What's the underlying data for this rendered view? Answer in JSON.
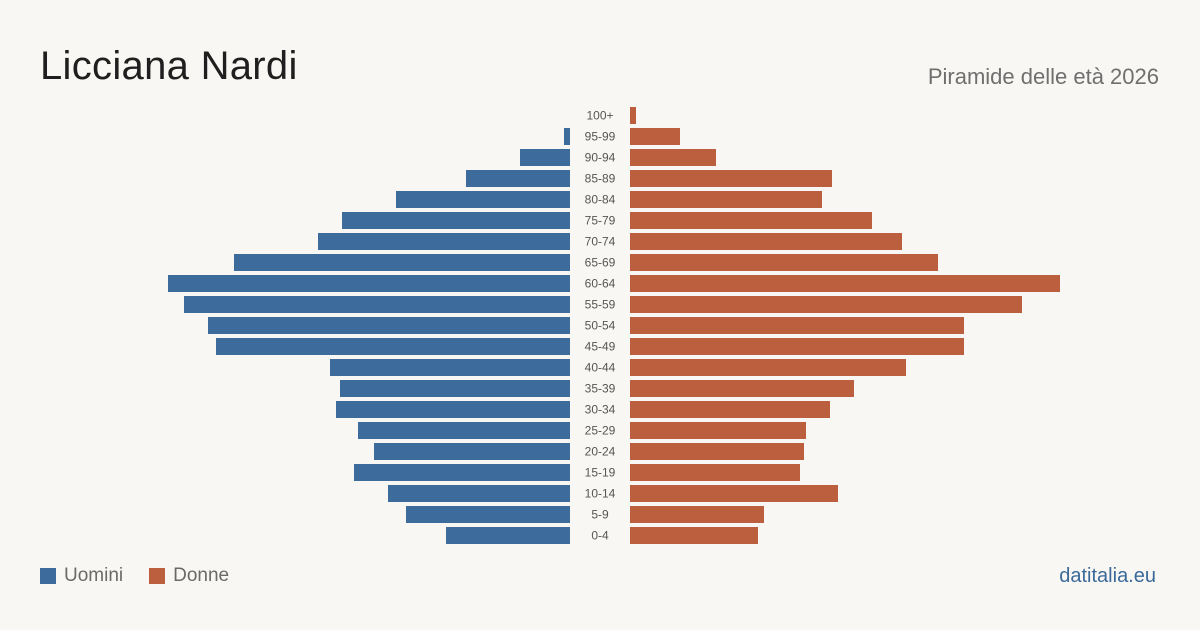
{
  "title": "Licciana Nardi",
  "subtitle": "Piramide delle età 2026",
  "site": "datitalia.eu",
  "colors": {
    "male": "#3d6b9b",
    "female": "#bc5f3e",
    "background": "#f9f7f3"
  },
  "legend": [
    {
      "label": "Uomini",
      "color": "#3d6b9b"
    },
    {
      "label": "Donne",
      "color": "#bc5f3e"
    }
  ],
  "chart_data": {
    "type": "bar",
    "orientation": "horizontal-pyramid",
    "categories": [
      "100+",
      "95-99",
      "90-94",
      "85-89",
      "80-84",
      "75-79",
      "70-74",
      "65-69",
      "60-64",
      "55-59",
      "50-54",
      "45-49",
      "40-44",
      "35-39",
      "30-34",
      "25-29",
      "20-24",
      "15-19",
      "10-14",
      "5-9",
      "0-4"
    ],
    "series": [
      {
        "name": "Uomini",
        "values": [
          0,
          1.5,
          12.5,
          26,
          43.5,
          57,
          63,
          84,
          100.5,
          96.5,
          90.5,
          88.5,
          60,
          57.5,
          58.5,
          53,
          49,
          54,
          45.5,
          41,
          31
        ]
      },
      {
        "name": "Donne",
        "values": [
          1.5,
          12.5,
          21.5,
          50.5,
          48,
          60.5,
          68,
          77,
          107.5,
          98,
          83.5,
          83.5,
          69,
          56,
          50,
          44,
          43.5,
          42.5,
          52,
          33.5,
          32
        ]
      }
    ],
    "xlim": [
      0,
      110
    ],
    "grid": false,
    "legend_position": "bottom-left"
  }
}
